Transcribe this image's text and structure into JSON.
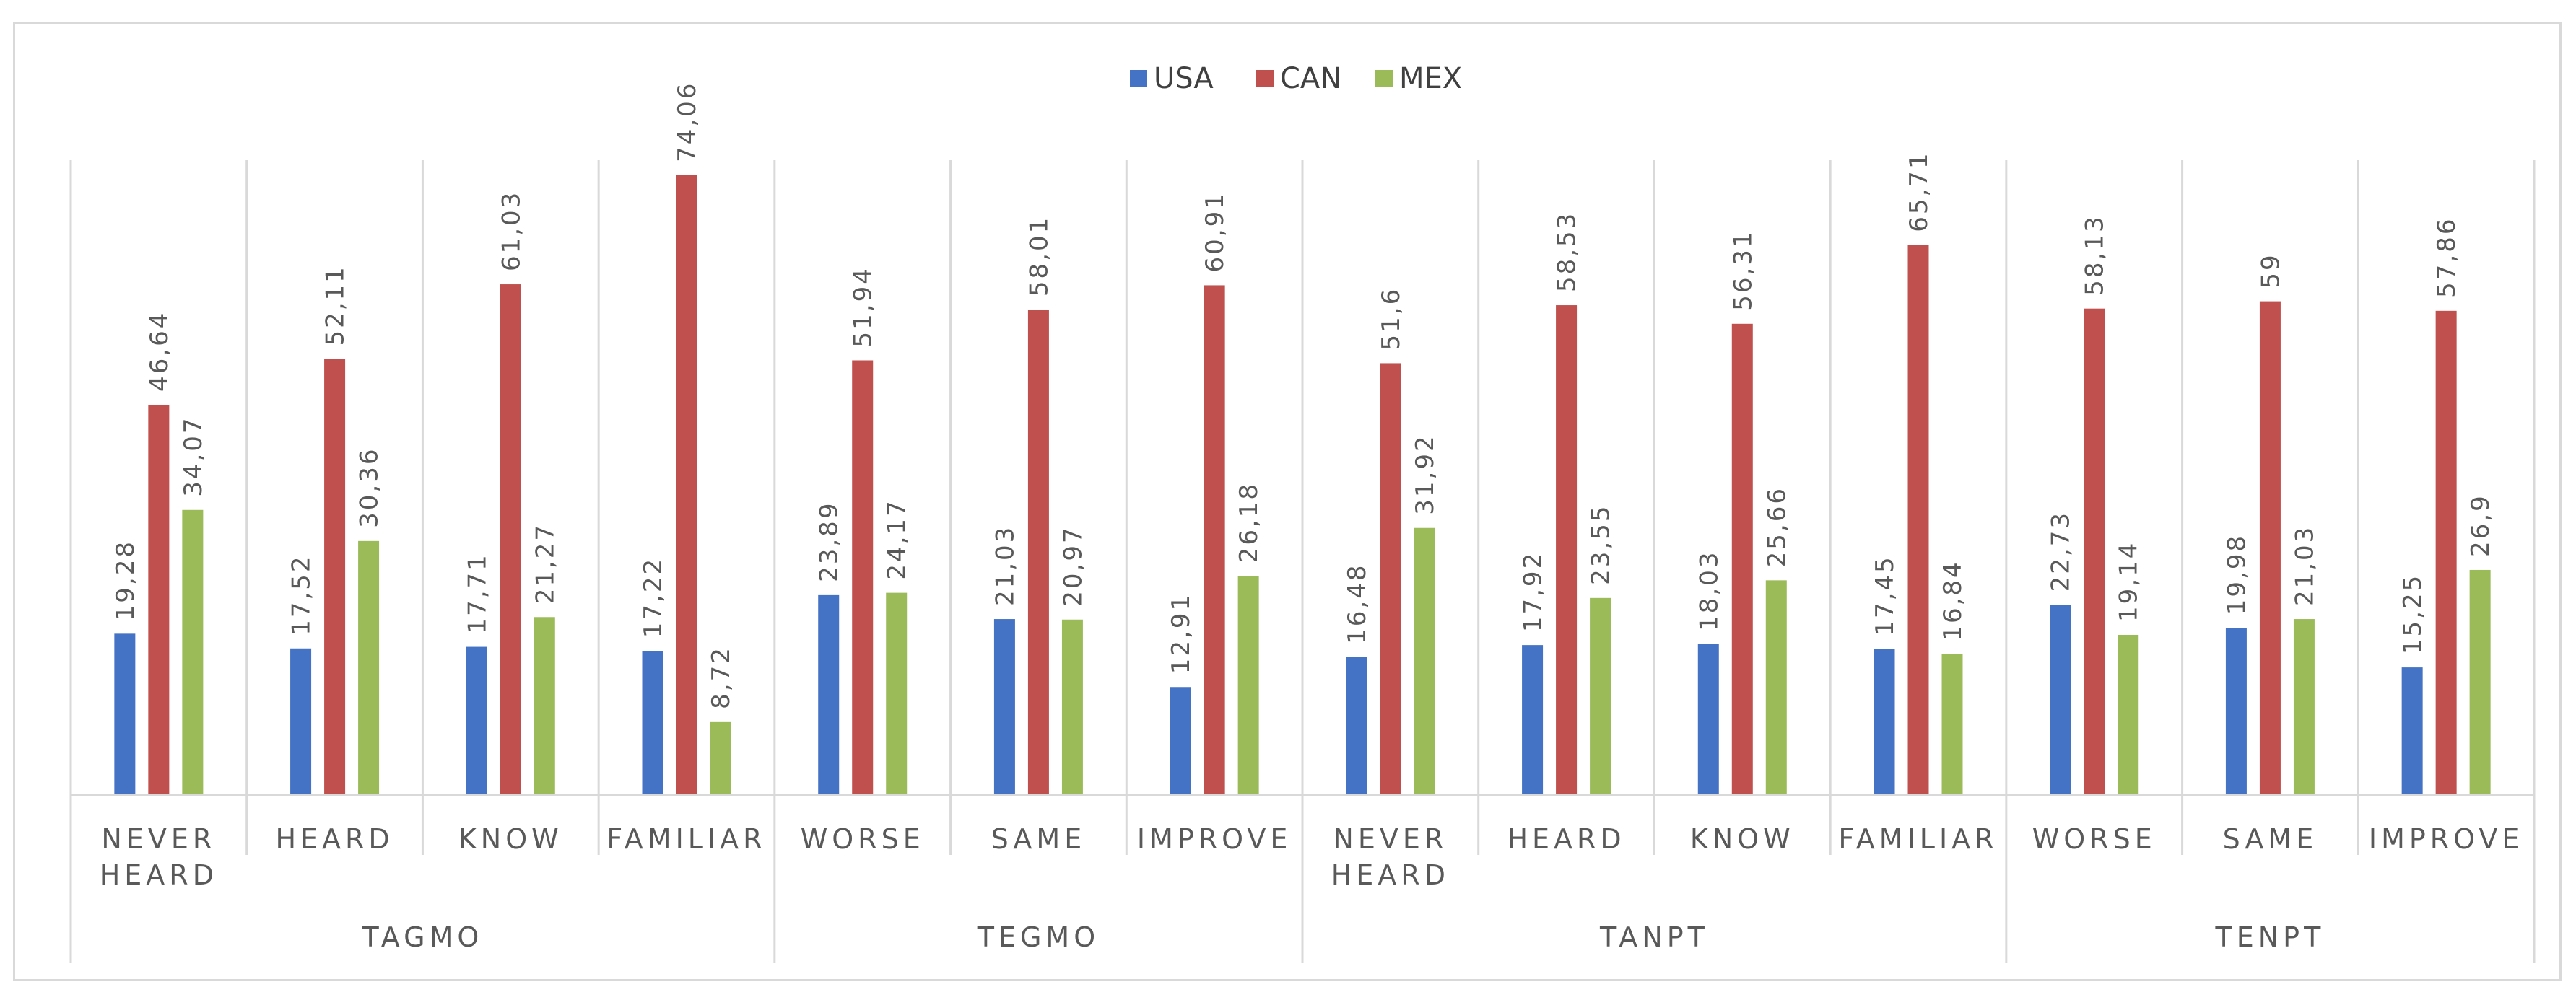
{
  "chart_data": {
    "type": "bar",
    "title": "",
    "xlabel": "",
    "ylabel": "",
    "ylim": [
      0,
      80
    ],
    "legend_position": "top-center",
    "grid": false,
    "groups": [
      {
        "name": "TAGMO",
        "categories": [
          [
            "NEVER",
            "HEARD"
          ],
          [
            "HEARD"
          ],
          [
            "KNOW"
          ],
          [
            "FAMILIAR"
          ]
        ]
      },
      {
        "name": "TEGMO",
        "categories": [
          [
            "WORSE"
          ],
          [
            "SAME"
          ],
          [
            "IMPROVE"
          ]
        ]
      },
      {
        "name": "TANPT",
        "categories": [
          [
            "NEVER",
            "HEARD"
          ],
          [
            "HEARD"
          ],
          [
            "KNOW"
          ],
          [
            "FAMILIAR"
          ]
        ]
      },
      {
        "name": "TENPT",
        "categories": [
          [
            "WORSE"
          ],
          [
            "SAME"
          ],
          [
            "IMPROVE"
          ]
        ]
      }
    ],
    "series": [
      {
        "name": "USA",
        "color": "#4472c4",
        "values": [
          19.28,
          17.52,
          17.71,
          17.22,
          23.89,
          21.03,
          12.91,
          16.48,
          17.92,
          18.03,
          17.45,
          22.73,
          19.98,
          15.25
        ],
        "labels": [
          "19,28",
          "17,52",
          "17,71",
          "17,22",
          "23,89",
          "21,03",
          "12,91",
          "16,48",
          "17,92",
          "18,03",
          "17,45",
          "22,73",
          "19,98",
          "15,25"
        ]
      },
      {
        "name": "CAN",
        "color": "#c0504d",
        "values": [
          46.64,
          52.11,
          61.03,
          74.06,
          51.94,
          58.01,
          60.91,
          51.6,
          58.53,
          56.31,
          65.71,
          58.13,
          59,
          57.86
        ],
        "labels": [
          "46,64",
          "52,11",
          "61,03",
          "74,06",
          "51,94",
          "58,01",
          "60,91",
          "51,6",
          "58,53",
          "56,31",
          "65,71",
          "58,13",
          "59",
          "57,86"
        ]
      },
      {
        "name": "MEX",
        "color": "#9bbb59",
        "values": [
          34.07,
          30.36,
          21.27,
          8.72,
          24.17,
          20.97,
          26.18,
          31.92,
          23.55,
          25.66,
          16.84,
          19.14,
          21.03,
          26.9
        ],
        "labels": [
          "34,07",
          "30,36",
          "21,27",
          "8,72",
          "24,17",
          "20,97",
          "26,18",
          "31,92",
          "23,55",
          "25,66",
          "16,84",
          "19,14",
          "21,03",
          "26,9"
        ]
      }
    ]
  }
}
